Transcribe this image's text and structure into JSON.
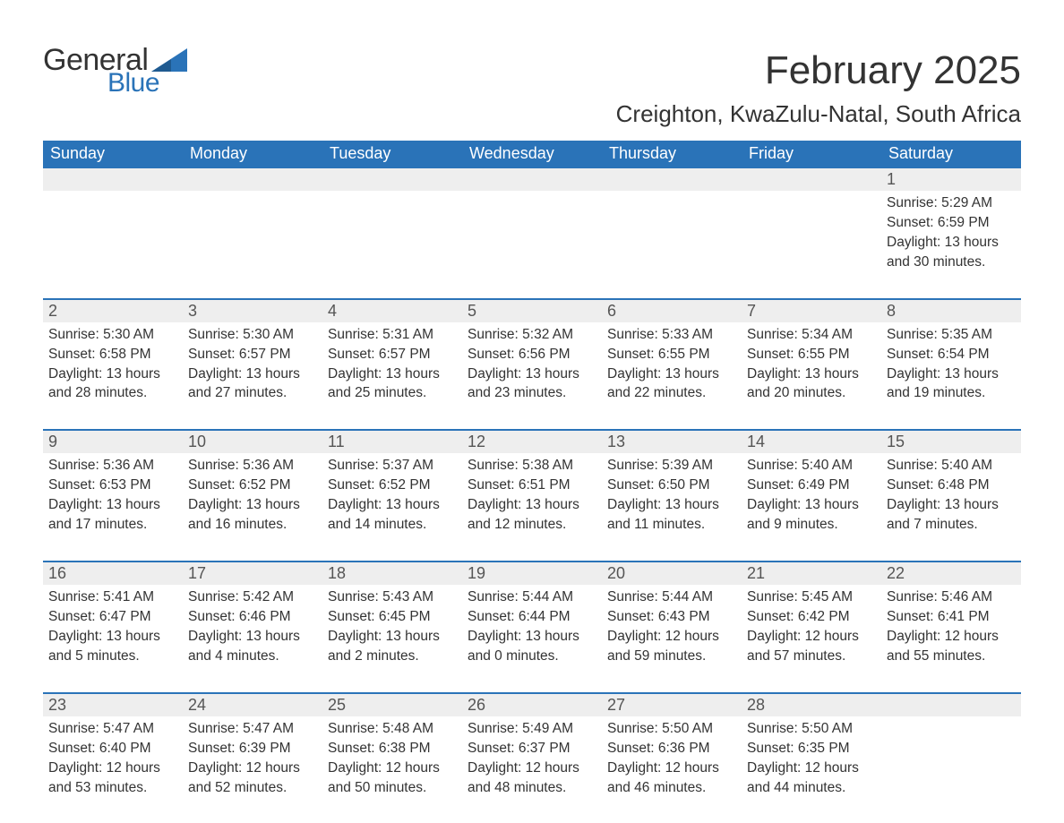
{
  "logo": {
    "general": "General",
    "blue": "Blue",
    "tri_color": "#2a73b8"
  },
  "title": "February 2025",
  "subtitle": "Creighton, KwaZulu-Natal, South Africa",
  "colors": {
    "header_bg": "#2a73b8",
    "header_fg": "#ffffff",
    "daynum_bg": "#eeeeee",
    "daynum_border": "#2a73b8",
    "text": "#333333",
    "page_bg": "#ffffff"
  },
  "typography": {
    "title_fontsize": 44,
    "subtitle_fontsize": 26,
    "header_fontsize": 18,
    "daynum_fontsize": 18,
    "body_fontsize": 15.5
  },
  "day_headers": [
    "Sunday",
    "Monday",
    "Tuesday",
    "Wednesday",
    "Thursday",
    "Friday",
    "Saturday"
  ],
  "weeks": [
    [
      {},
      {},
      {},
      {},
      {},
      {},
      {
        "num": "1",
        "sunrise": "Sunrise: 5:29 AM",
        "sunset": "Sunset: 6:59 PM",
        "dl1": "Daylight: 13 hours",
        "dl2": "and 30 minutes."
      }
    ],
    [
      {
        "num": "2",
        "sunrise": "Sunrise: 5:30 AM",
        "sunset": "Sunset: 6:58 PM",
        "dl1": "Daylight: 13 hours",
        "dl2": "and 28 minutes."
      },
      {
        "num": "3",
        "sunrise": "Sunrise: 5:30 AM",
        "sunset": "Sunset: 6:57 PM",
        "dl1": "Daylight: 13 hours",
        "dl2": "and 27 minutes."
      },
      {
        "num": "4",
        "sunrise": "Sunrise: 5:31 AM",
        "sunset": "Sunset: 6:57 PM",
        "dl1": "Daylight: 13 hours",
        "dl2": "and 25 minutes."
      },
      {
        "num": "5",
        "sunrise": "Sunrise: 5:32 AM",
        "sunset": "Sunset: 6:56 PM",
        "dl1": "Daylight: 13 hours",
        "dl2": "and 23 minutes."
      },
      {
        "num": "6",
        "sunrise": "Sunrise: 5:33 AM",
        "sunset": "Sunset: 6:55 PM",
        "dl1": "Daylight: 13 hours",
        "dl2": "and 22 minutes."
      },
      {
        "num": "7",
        "sunrise": "Sunrise: 5:34 AM",
        "sunset": "Sunset: 6:55 PM",
        "dl1": "Daylight: 13 hours",
        "dl2": "and 20 minutes."
      },
      {
        "num": "8",
        "sunrise": "Sunrise: 5:35 AM",
        "sunset": "Sunset: 6:54 PM",
        "dl1": "Daylight: 13 hours",
        "dl2": "and 19 minutes."
      }
    ],
    [
      {
        "num": "9",
        "sunrise": "Sunrise: 5:36 AM",
        "sunset": "Sunset: 6:53 PM",
        "dl1": "Daylight: 13 hours",
        "dl2": "and 17 minutes."
      },
      {
        "num": "10",
        "sunrise": "Sunrise: 5:36 AM",
        "sunset": "Sunset: 6:52 PM",
        "dl1": "Daylight: 13 hours",
        "dl2": "and 16 minutes."
      },
      {
        "num": "11",
        "sunrise": "Sunrise: 5:37 AM",
        "sunset": "Sunset: 6:52 PM",
        "dl1": "Daylight: 13 hours",
        "dl2": "and 14 minutes."
      },
      {
        "num": "12",
        "sunrise": "Sunrise: 5:38 AM",
        "sunset": "Sunset: 6:51 PM",
        "dl1": "Daylight: 13 hours",
        "dl2": "and 12 minutes."
      },
      {
        "num": "13",
        "sunrise": "Sunrise: 5:39 AM",
        "sunset": "Sunset: 6:50 PM",
        "dl1": "Daylight: 13 hours",
        "dl2": "and 11 minutes."
      },
      {
        "num": "14",
        "sunrise": "Sunrise: 5:40 AM",
        "sunset": "Sunset: 6:49 PM",
        "dl1": "Daylight: 13 hours",
        "dl2": "and 9 minutes."
      },
      {
        "num": "15",
        "sunrise": "Sunrise: 5:40 AM",
        "sunset": "Sunset: 6:48 PM",
        "dl1": "Daylight: 13 hours",
        "dl2": "and 7 minutes."
      }
    ],
    [
      {
        "num": "16",
        "sunrise": "Sunrise: 5:41 AM",
        "sunset": "Sunset: 6:47 PM",
        "dl1": "Daylight: 13 hours",
        "dl2": "and 5 minutes."
      },
      {
        "num": "17",
        "sunrise": "Sunrise: 5:42 AM",
        "sunset": "Sunset: 6:46 PM",
        "dl1": "Daylight: 13 hours",
        "dl2": "and 4 minutes."
      },
      {
        "num": "18",
        "sunrise": "Sunrise: 5:43 AM",
        "sunset": "Sunset: 6:45 PM",
        "dl1": "Daylight: 13 hours",
        "dl2": "and 2 minutes."
      },
      {
        "num": "19",
        "sunrise": "Sunrise: 5:44 AM",
        "sunset": "Sunset: 6:44 PM",
        "dl1": "Daylight: 13 hours",
        "dl2": "and 0 minutes."
      },
      {
        "num": "20",
        "sunrise": "Sunrise: 5:44 AM",
        "sunset": "Sunset: 6:43 PM",
        "dl1": "Daylight: 12 hours",
        "dl2": "and 59 minutes."
      },
      {
        "num": "21",
        "sunrise": "Sunrise: 5:45 AM",
        "sunset": "Sunset: 6:42 PM",
        "dl1": "Daylight: 12 hours",
        "dl2": "and 57 minutes."
      },
      {
        "num": "22",
        "sunrise": "Sunrise: 5:46 AM",
        "sunset": "Sunset: 6:41 PM",
        "dl1": "Daylight: 12 hours",
        "dl2": "and 55 minutes."
      }
    ],
    [
      {
        "num": "23",
        "sunrise": "Sunrise: 5:47 AM",
        "sunset": "Sunset: 6:40 PM",
        "dl1": "Daylight: 12 hours",
        "dl2": "and 53 minutes."
      },
      {
        "num": "24",
        "sunrise": "Sunrise: 5:47 AM",
        "sunset": "Sunset: 6:39 PM",
        "dl1": "Daylight: 12 hours",
        "dl2": "and 52 minutes."
      },
      {
        "num": "25",
        "sunrise": "Sunrise: 5:48 AM",
        "sunset": "Sunset: 6:38 PM",
        "dl1": "Daylight: 12 hours",
        "dl2": "and 50 minutes."
      },
      {
        "num": "26",
        "sunrise": "Sunrise: 5:49 AM",
        "sunset": "Sunset: 6:37 PM",
        "dl1": "Daylight: 12 hours",
        "dl2": "and 48 minutes."
      },
      {
        "num": "27",
        "sunrise": "Sunrise: 5:50 AM",
        "sunset": "Sunset: 6:36 PM",
        "dl1": "Daylight: 12 hours",
        "dl2": "and 46 minutes."
      },
      {
        "num": "28",
        "sunrise": "Sunrise: 5:50 AM",
        "sunset": "Sunset: 6:35 PM",
        "dl1": "Daylight: 12 hours",
        "dl2": "and 44 minutes."
      },
      {}
    ]
  ]
}
